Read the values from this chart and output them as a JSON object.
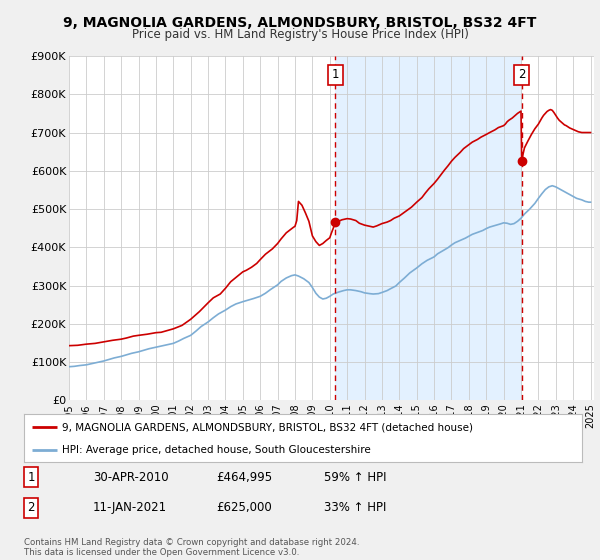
{
  "title": "9, MAGNOLIA GARDENS, ALMONDSBURY, BRISTOL, BS32 4FT",
  "subtitle": "Price paid vs. HM Land Registry's House Price Index (HPI)",
  "title_fontsize": 10,
  "subtitle_fontsize": 8.5,
  "background_color": "#f0f0f0",
  "plot_bg_color": "#ffffff",
  "grid_color": "#cccccc",
  "xlim": [
    1995.0,
    2025.2
  ],
  "ylim": [
    0,
    900000
  ],
  "yticks": [
    0,
    100000,
    200000,
    300000,
    400000,
    500000,
    600000,
    700000,
    800000,
    900000
  ],
  "ytick_labels": [
    "£0",
    "£100K",
    "£200K",
    "£300K",
    "£400K",
    "£500K",
    "£600K",
    "£700K",
    "£800K",
    "£900K"
  ],
  "xticks": [
    1995,
    1996,
    1997,
    1998,
    1999,
    2000,
    2001,
    2002,
    2003,
    2004,
    2005,
    2006,
    2007,
    2008,
    2009,
    2010,
    2011,
    2012,
    2013,
    2014,
    2015,
    2016,
    2017,
    2018,
    2019,
    2020,
    2021,
    2022,
    2023,
    2024,
    2025
  ],
  "red_line_color": "#cc0000",
  "blue_line_color": "#7dadd4",
  "shade_color": "#ddeeff",
  "marker1_date": 2010.33,
  "marker1_value": 464995,
  "marker2_date": 2021.04,
  "marker2_value": 625000,
  "label1_date": "30-APR-2010",
  "label1_price": "£464,995",
  "label1_hpi": "59% ↑ HPI",
  "label2_date": "11-JAN-2021",
  "label2_price": "£625,000",
  "label2_hpi": "33% ↑ HPI",
  "legend_line1": "9, MAGNOLIA GARDENS, ALMONDSBURY, BRISTOL, BS32 4FT (detached house)",
  "legend_line2": "HPI: Average price, detached house, South Gloucestershire",
  "footer": "Contains HM Land Registry data © Crown copyright and database right 2024.\nThis data is licensed under the Open Government Licence v3.0."
}
